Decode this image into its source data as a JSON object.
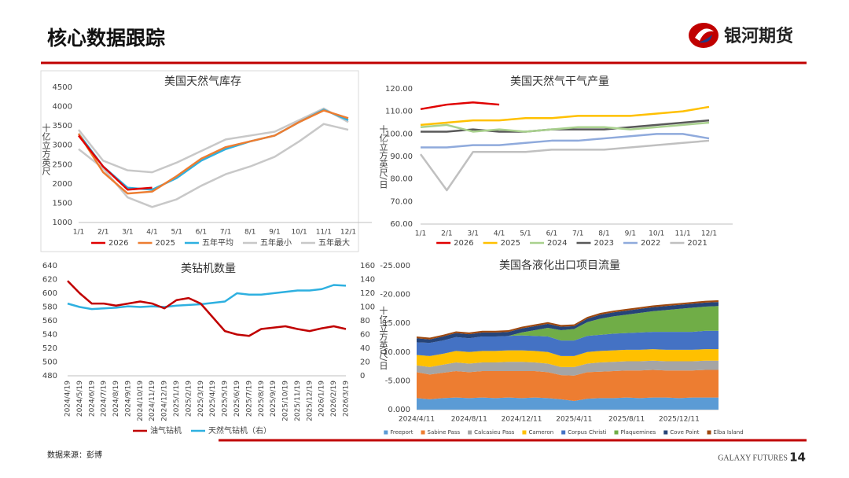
{
  "header": {
    "title": "核心数据跟踪",
    "logo_text": "银河期货"
  },
  "footer": {
    "source": "数据来源：彭博",
    "brand": "GALAXY FUTURES",
    "page": "14"
  },
  "chart_data": [
    {
      "type": "line",
      "title": "美国天然气库存",
      "y_label": "十亿立方英尺",
      "categories": [
        "1/1",
        "2/1",
        "3/1",
        "4/1",
        "5/1",
        "6/1",
        "7/1",
        "8/1",
        "9/1",
        "10/1",
        "11/1",
        "12/1"
      ],
      "ylim": [
        1000,
        4500
      ],
      "yticks": [
        1000,
        1500,
        2000,
        2500,
        3000,
        3500,
        4000,
        4500
      ],
      "series": [
        {
          "name": "五年最大",
          "color": "#c8c8c8",
          "values": [
            3400,
            2600,
            2350,
            2300,
            2550,
            2850,
            3150,
            3250,
            3350,
            3650,
            3950,
            3600
          ]
        },
        {
          "name": "五年最小",
          "color": "#c8c8c8",
          "values": [
            2900,
            2400,
            1650,
            1400,
            1600,
            1950,
            2250,
            2450,
            2700,
            3100,
            3550,
            3400
          ]
        },
        {
          "name": "五年平均",
          "color": "#2eb0e0",
          "values": [
            3300,
            2450,
            1900,
            1850,
            2150,
            2600,
            2900,
            3100,
            3250,
            3600,
            3920,
            3650
          ]
        },
        {
          "name": "2025",
          "color": "#ed7d31",
          "values": [
            3300,
            2300,
            1750,
            1800,
            2200,
            2650,
            2950,
            3100,
            3250,
            3600,
            3900,
            3700
          ]
        },
        {
          "name": "2026",
          "color": "#e00000",
          "values": [
            3250,
            2450,
            1850,
            1900,
            null,
            null,
            null,
            null,
            null,
            null,
            null,
            null
          ]
        }
      ]
    },
    {
      "type": "line",
      "title": "美国天然气干气产量",
      "y_label": "十亿立方英尺/日",
      "categories": [
        "1/1",
        "2/1",
        "3/1",
        "4/1",
        "5/1",
        "6/1",
        "7/1",
        "8/1",
        "9/1",
        "10/1",
        "11/1",
        "12/1"
      ],
      "ylim": [
        60,
        120
      ],
      "yticks": [
        {
          "value": 60,
          "label": "60.00"
        },
        {
          "value": 70,
          "label": "70.00"
        },
        {
          "value": 80,
          "label": "80.00"
        },
        {
          "value": 90,
          "label": "90.00"
        },
        {
          "value": 100,
          "label": "100.00"
        },
        {
          "value": 110,
          "label": "110.00"
        },
        {
          "value": 120,
          "label": "120.00"
        }
      ],
      "series": [
        {
          "name": "2021",
          "color": "#c0c0c0",
          "values": [
            91,
            75,
            92,
            92,
            92,
            93,
            93,
            93,
            94,
            95,
            96,
            97
          ]
        },
        {
          "name": "2022",
          "color": "#8faadc",
          "values": [
            94,
            94,
            95,
            95,
            96,
            97,
            97,
            98,
            99,
            100,
            100,
            98
          ]
        },
        {
          "name": "2023",
          "color": "#595959",
          "values": [
            101,
            101,
            102,
            101,
            101,
            102,
            102,
            102,
            103,
            104,
            105,
            106
          ]
        },
        {
          "name": "2024",
          "color": "#a9d18e",
          "values": [
            103,
            104,
            101,
            102,
            101,
            102,
            103,
            103,
            102,
            103,
            104,
            105
          ]
        },
        {
          "name": "2025",
          "color": "#ffc000",
          "values": [
            104,
            105,
            106,
            106,
            107,
            107,
            108,
            108,
            108,
            109,
            110,
            112
          ]
        },
        {
          "name": "2026",
          "color": "#e00000",
          "values": [
            111,
            113,
            114,
            113,
            null,
            null,
            null,
            null,
            null,
            null,
            null,
            null
          ]
        }
      ]
    },
    {
      "type": "combo",
      "title": "美钻机数量",
      "categories": [
        "2024/4/19",
        "2024/5/19",
        "2024/6/19",
        "2024/7/19",
        "2024/8/19",
        "2024/9/19",
        "2024/10/19",
        "2024/11/19",
        "2024/12/19",
        "2025/1/19",
        "2025/2/19",
        "2025/3/19",
        "2025/4/19",
        "2025/5/19",
        "2025/6/19",
        "2025/7/19",
        "2025/8/19",
        "2025/9/19",
        "2025/10/19",
        "2025/11/19",
        "2025/12/19",
        "2026/1/19",
        "2026/2/19",
        "2026/3/19"
      ],
      "ylim": [
        480,
        640
      ],
      "yticks": [
        480,
        500,
        520,
        540,
        560,
        580,
        600,
        620,
        640
      ],
      "y2lim": [
        0,
        160
      ],
      "y2ticks": [
        0,
        20,
        40,
        60,
        80,
        100,
        120,
        140,
        160
      ],
      "series": [
        {
          "name": "天然气钻机（右）",
          "color": "#2eb0e0",
          "axis": "y2",
          "values": [
            105,
            100,
            97,
            98,
            99,
            101,
            100,
            101,
            100,
            102,
            103,
            104,
            106,
            108,
            120,
            118,
            118,
            120,
            122,
            124,
            124,
            126,
            132,
            131
          ]
        },
        {
          "name": "油气钻机",
          "color": "#c00000",
          "values": [
            618,
            600,
            585,
            585,
            582,
            585,
            588,
            585,
            578,
            590,
            593,
            585,
            565,
            545,
            540,
            538,
            548,
            550,
            552,
            548,
            545,
            549,
            552,
            548
          ]
        }
      ]
    },
    {
      "type": "area",
      "title": "美国各液化出口项目流量",
      "y_label": "十亿立方英尺/日",
      "categories": [
        "2024/4/11",
        null,
        null,
        null,
        "2024/8/11",
        null,
        null,
        null,
        "2024/12/11",
        null,
        null,
        null,
        "2025/4/11",
        null,
        null,
        null,
        "2025/8/11",
        null,
        null,
        null,
        "2025/12/11",
        null,
        null,
        null
      ],
      "ylim": [
        0,
        -25
      ],
      "yticks": [
        {
          "value": -25,
          "label": "-25.000"
        },
        {
          "value": -20,
          "label": "-20.000"
        },
        {
          "value": -15,
          "label": "-15.000"
        },
        {
          "value": -10,
          "label": "-10.000"
        },
        {
          "value": -5,
          "label": "-5.000"
        },
        {
          "value": 0,
          "label": "0.000"
        }
      ],
      "series": [
        {
          "name": "Freeport",
          "color": "#5b9bd5",
          "values": [
            -2.0,
            -1.8,
            -2.0,
            -2.1,
            -2.0,
            -2.1,
            -2.0,
            -2.1,
            -2.0,
            -2.1,
            -2.0,
            -1.8,
            -1.5,
            -1.9,
            -2.0,
            -2.0,
            -2.1,
            -2.0,
            -2.1,
            -2.1,
            -2.0,
            -2.1,
            -2.1,
            -2.1
          ]
        },
        {
          "name": "Sabine Pass",
          "color": "#ed7d31",
          "values": [
            -4.5,
            -4.3,
            -4.4,
            -4.6,
            -4.5,
            -4.6,
            -4.7,
            -4.6,
            -4.7,
            -4.6,
            -4.5,
            -4.2,
            -4.4,
            -4.6,
            -4.6,
            -4.7,
            -4.7,
            -4.8,
            -4.8,
            -4.7,
            -4.8,
            -4.7,
            -4.8,
            -4.8
          ]
        },
        {
          "name": "Calcasieu Pass",
          "color": "#a5a5a5",
          "values": [
            -1.2,
            -1.3,
            -1.4,
            -1.5,
            -1.5,
            -1.5,
            -1.5,
            -1.6,
            -1.6,
            -1.5,
            -1.5,
            -1.4,
            -1.5,
            -1.5,
            -1.6,
            -1.6,
            -1.6,
            -1.6,
            -1.6,
            -1.6,
            -1.6,
            -1.6,
            -1.6,
            -1.6
          ]
        },
        {
          "name": "Cameron",
          "color": "#ffc000",
          "values": [
            -1.8,
            -1.9,
            -1.9,
            -2.0,
            -2.0,
            -2.0,
            -2.0,
            -2.0,
            -2.0,
            -2.0,
            -2.0,
            -1.9,
            -1.9,
            -2.0,
            -2.0,
            -2.0,
            -2.0,
            -2.0,
            -2.0,
            -2.0,
            -2.0,
            -2.0,
            -2.0,
            -2.0
          ]
        },
        {
          "name": "Corpus Christi",
          "color": "#4472c4",
          "values": [
            -2.2,
            -2.3,
            -2.3,
            -2.4,
            -2.4,
            -2.5,
            -2.5,
            -2.5,
            -2.6,
            -2.6,
            -2.7,
            -2.7,
            -2.7,
            -2.8,
            -2.8,
            -2.9,
            -2.9,
            -3.0,
            -3.0,
            -3.1,
            -3.1,
            -3.1,
            -3.2,
            -3.2
          ]
        },
        {
          "name": "Plaquemines",
          "color": "#70ad47",
          "values": [
            0,
            0,
            0,
            0,
            0,
            0,
            0,
            0,
            -0.5,
            -1.0,
            -1.5,
            -1.8,
            -2.0,
            -2.4,
            -2.8,
            -3.0,
            -3.2,
            -3.4,
            -3.6,
            -3.8,
            -4.0,
            -4.2,
            -4.2,
            -4.3
          ]
        },
        {
          "name": "Cove Point",
          "color": "#264478",
          "values": [
            -0.7,
            -0.6,
            -0.7,
            -0.7,
            -0.7,
            -0.7,
            -0.7,
            -0.7,
            -0.7,
            -0.7,
            -0.7,
            -0.6,
            -0.5,
            -0.6,
            -0.7,
            -0.7,
            -0.7,
            -0.7,
            -0.7,
            -0.7,
            -0.7,
            -0.7,
            -0.7,
            -0.7
          ]
        },
        {
          "name": "Elba Island",
          "color": "#9e480e",
          "values": [
            -0.3,
            -0.3,
            -0.3,
            -0.3,
            -0.3,
            -0.3,
            -0.3,
            -0.3,
            -0.3,
            -0.3,
            -0.3,
            -0.3,
            -0.3,
            -0.3,
            -0.3,
            -0.3,
            -0.3,
            -0.3,
            -0.3,
            -0.3,
            -0.3,
            -0.3,
            -0.3,
            -0.3
          ]
        }
      ]
    }
  ]
}
